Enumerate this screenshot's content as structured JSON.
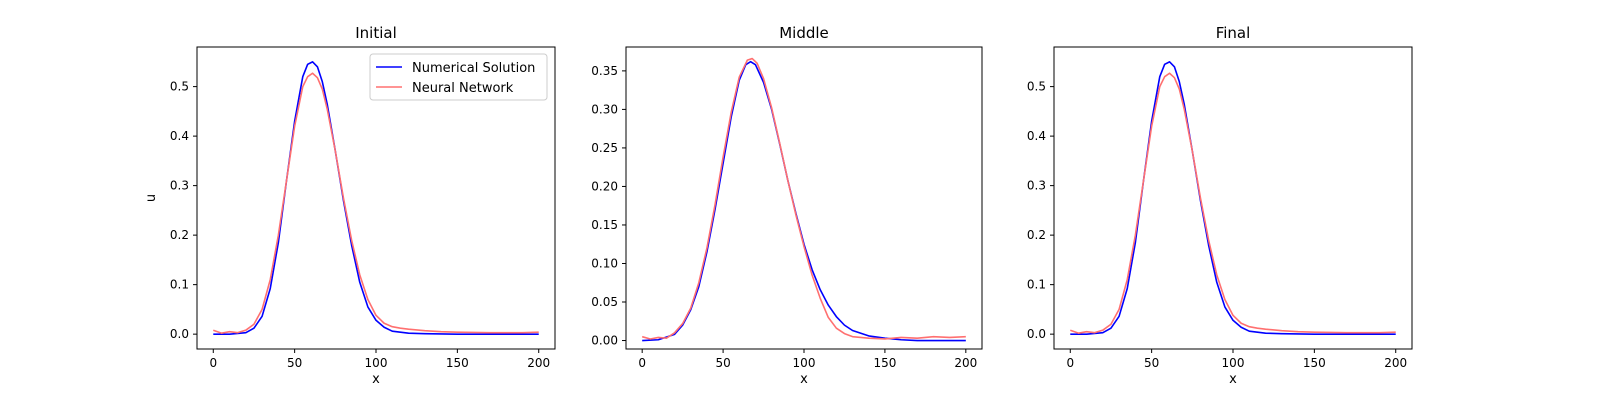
{
  "chart_data": [
    {
      "type": "line",
      "title": "Initial",
      "xlabel": "x",
      "ylabel": "u",
      "xlim": [
        -10,
        210
      ],
      "ylim": [
        -0.03,
        0.58
      ],
      "xticks": [
        0,
        50,
        100,
        150,
        200
      ],
      "yticks": [
        0.0,
        0.1,
        0.2,
        0.3,
        0.4,
        0.5
      ],
      "ytick_decimals": 1,
      "grid": false,
      "legend": "top-right",
      "series": [
        {
          "name": "Numerical Solution",
          "color": "#0000ff",
          "x": [
            0,
            10,
            20,
            25,
            30,
            35,
            40,
            45,
            50,
            55,
            58,
            61,
            64,
            67,
            70,
            75,
            80,
            85,
            90,
            95,
            100,
            105,
            110,
            120,
            130,
            150,
            170,
            200
          ],
          "y": [
            0.0,
            0.0,
            0.003,
            0.012,
            0.036,
            0.092,
            0.185,
            0.31,
            0.43,
            0.52,
            0.545,
            0.55,
            0.54,
            0.51,
            0.465,
            0.37,
            0.27,
            0.18,
            0.105,
            0.055,
            0.028,
            0.014,
            0.006,
            0.002,
            0.001,
            0.0,
            0.0,
            0.0
          ]
        },
        {
          "name": "Neural Network",
          "color": "#ff7070",
          "x": [
            0,
            5,
            10,
            15,
            20,
            25,
            30,
            35,
            40,
            45,
            50,
            55,
            58,
            61,
            64,
            67,
            70,
            75,
            80,
            85,
            90,
            95,
            100,
            105,
            110,
            115,
            120,
            130,
            140,
            150,
            170,
            190,
            200
          ],
          "y": [
            0.008,
            0.002,
            0.005,
            0.003,
            0.008,
            0.02,
            0.05,
            0.11,
            0.2,
            0.31,
            0.42,
            0.5,
            0.52,
            0.527,
            0.518,
            0.495,
            0.455,
            0.37,
            0.275,
            0.19,
            0.12,
            0.07,
            0.038,
            0.022,
            0.015,
            0.012,
            0.01,
            0.007,
            0.005,
            0.004,
            0.003,
            0.003,
            0.004
          ]
        }
      ]
    },
    {
      "type": "line",
      "title": "Middle",
      "xlabel": "x",
      "ylabel": "",
      "xlim": [
        -10,
        210
      ],
      "ylim": [
        -0.011,
        0.381
      ],
      "xticks": [
        0,
        50,
        100,
        150,
        200
      ],
      "yticks": [
        0.0,
        0.05,
        0.1,
        0.15,
        0.2,
        0.25,
        0.3,
        0.35
      ],
      "ytick_decimals": 2,
      "grid": false,
      "legend": "",
      "series": [
        {
          "name": "",
          "color": "#0000ff",
          "x": [
            0,
            10,
            20,
            25,
            30,
            35,
            40,
            45,
            50,
            55,
            60,
            64,
            67,
            70,
            75,
            80,
            85,
            90,
            95,
            100,
            105,
            110,
            115,
            120,
            125,
            130,
            140,
            150,
            160,
            170,
            200
          ],
          "y": [
            0.0,
            0.001,
            0.008,
            0.02,
            0.04,
            0.07,
            0.115,
            0.17,
            0.23,
            0.29,
            0.338,
            0.358,
            0.362,
            0.358,
            0.335,
            0.3,
            0.255,
            0.208,
            0.165,
            0.125,
            0.092,
            0.066,
            0.046,
            0.031,
            0.02,
            0.013,
            0.006,
            0.003,
            0.001,
            0.0,
            0.0
          ]
        },
        {
          "name": "",
          "color": "#ff7070",
          "x": [
            0,
            5,
            10,
            15,
            20,
            25,
            30,
            35,
            40,
            45,
            50,
            55,
            60,
            65,
            68,
            71,
            75,
            80,
            85,
            90,
            95,
            100,
            105,
            110,
            115,
            120,
            125,
            130,
            140,
            150,
            160,
            170,
            180,
            190,
            200
          ],
          "y": [
            0.005,
            0.002,
            0.004,
            0.003,
            0.01,
            0.022,
            0.042,
            0.075,
            0.12,
            0.176,
            0.238,
            0.296,
            0.342,
            0.364,
            0.366,
            0.36,
            0.34,
            0.302,
            0.256,
            0.208,
            0.163,
            0.122,
            0.085,
            0.055,
            0.03,
            0.016,
            0.009,
            0.005,
            0.003,
            0.002,
            0.004,
            0.003,
            0.005,
            0.004,
            0.005
          ]
        }
      ]
    },
    {
      "type": "line",
      "title": "Final",
      "xlabel": "x",
      "ylabel": "",
      "xlim": [
        -10,
        210
      ],
      "ylim": [
        -0.03,
        0.58
      ],
      "xticks": [
        0,
        50,
        100,
        150,
        200
      ],
      "yticks": [
        0.0,
        0.1,
        0.2,
        0.3,
        0.4,
        0.5
      ],
      "ytick_decimals": 1,
      "grid": false,
      "legend": "",
      "series": [
        {
          "name": "",
          "color": "#0000ff",
          "x": [
            0,
            10,
            20,
            25,
            30,
            35,
            40,
            45,
            50,
            55,
            58,
            61,
            64,
            67,
            70,
            75,
            80,
            85,
            90,
            95,
            100,
            105,
            110,
            120,
            130,
            150,
            170,
            200
          ],
          "y": [
            0.0,
            0.0,
            0.003,
            0.012,
            0.036,
            0.092,
            0.185,
            0.31,
            0.43,
            0.52,
            0.545,
            0.55,
            0.54,
            0.51,
            0.465,
            0.37,
            0.27,
            0.18,
            0.105,
            0.055,
            0.028,
            0.014,
            0.006,
            0.002,
            0.001,
            0.0,
            0.0,
            0.0
          ]
        },
        {
          "name": "",
          "color": "#ff7070",
          "x": [
            0,
            5,
            10,
            15,
            20,
            25,
            30,
            35,
            40,
            45,
            50,
            55,
            58,
            61,
            64,
            67,
            70,
            75,
            80,
            85,
            90,
            95,
            100,
            105,
            110,
            115,
            120,
            130,
            140,
            150,
            170,
            190,
            200
          ],
          "y": [
            0.008,
            0.002,
            0.005,
            0.003,
            0.008,
            0.02,
            0.05,
            0.11,
            0.2,
            0.31,
            0.42,
            0.5,
            0.52,
            0.527,
            0.518,
            0.495,
            0.455,
            0.37,
            0.275,
            0.19,
            0.12,
            0.07,
            0.038,
            0.022,
            0.015,
            0.012,
            0.01,
            0.007,
            0.005,
            0.004,
            0.003,
            0.003,
            0.004
          ]
        }
      ]
    }
  ]
}
